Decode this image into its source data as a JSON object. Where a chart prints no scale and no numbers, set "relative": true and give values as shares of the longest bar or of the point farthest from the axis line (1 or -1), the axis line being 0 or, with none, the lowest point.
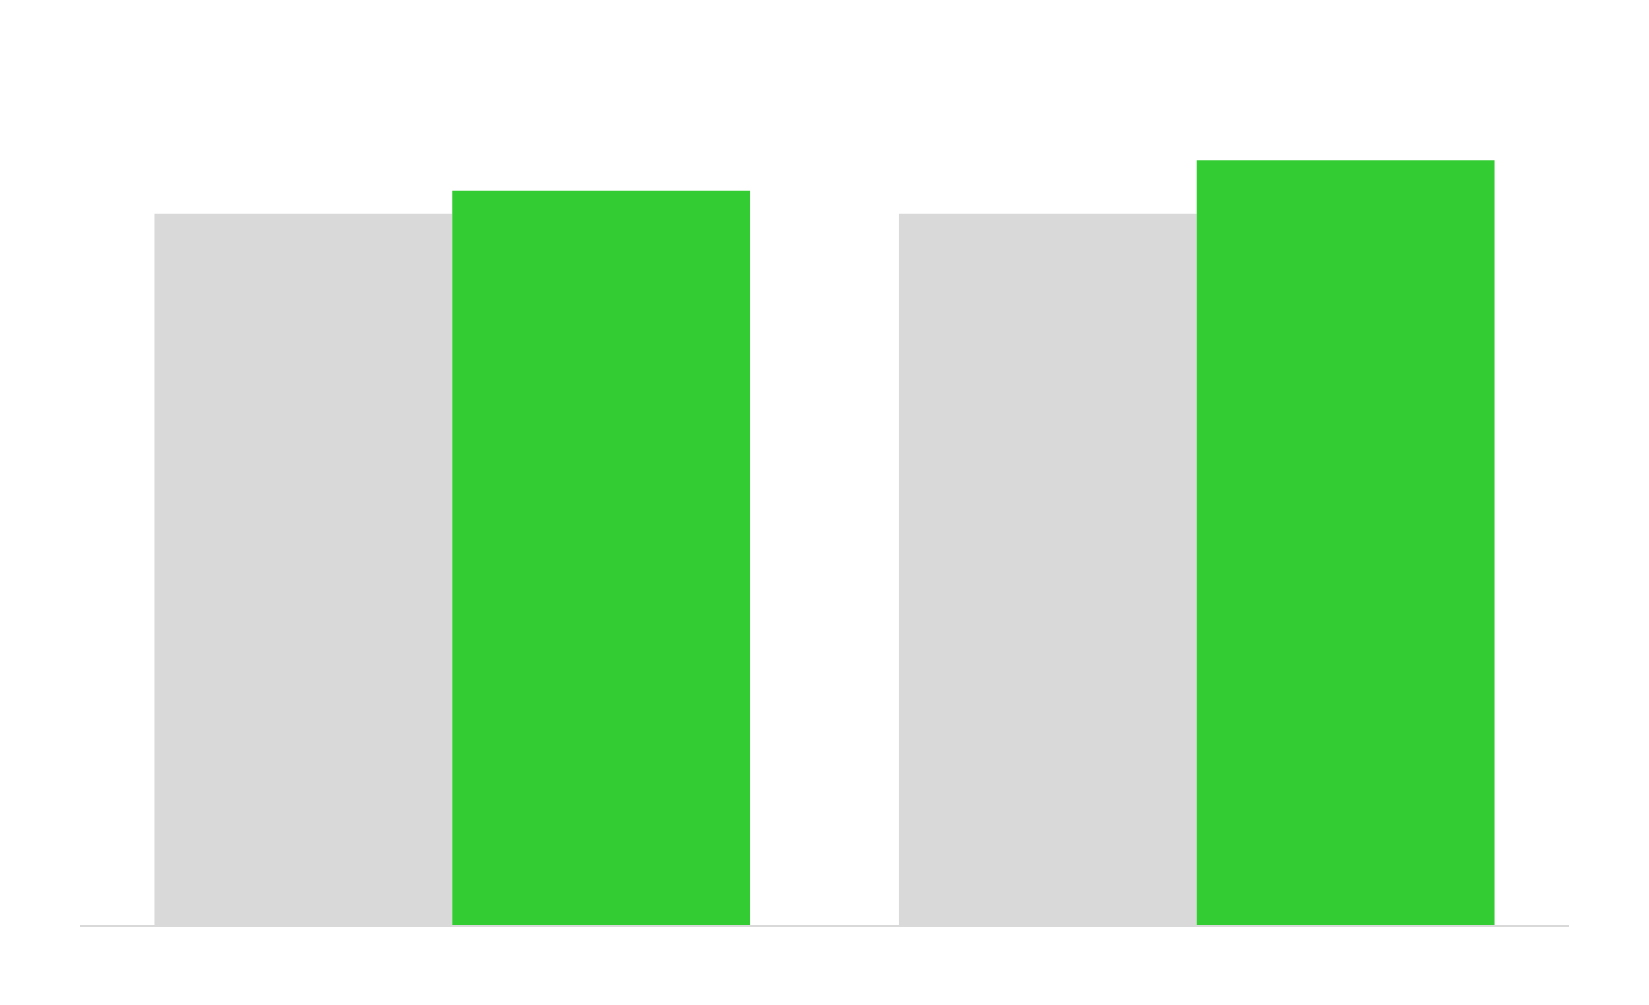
{
  "chart_data": {
    "type": "bar",
    "relative": true,
    "categories": [
      null,
      null
    ],
    "series": [
      {
        "color": "#d9d9d9",
        "values": [
          0.93,
          0.93
        ]
      },
      {
        "color": "#33cc33",
        "values": [
          0.96,
          1
        ]
      }
    ]
  }
}
